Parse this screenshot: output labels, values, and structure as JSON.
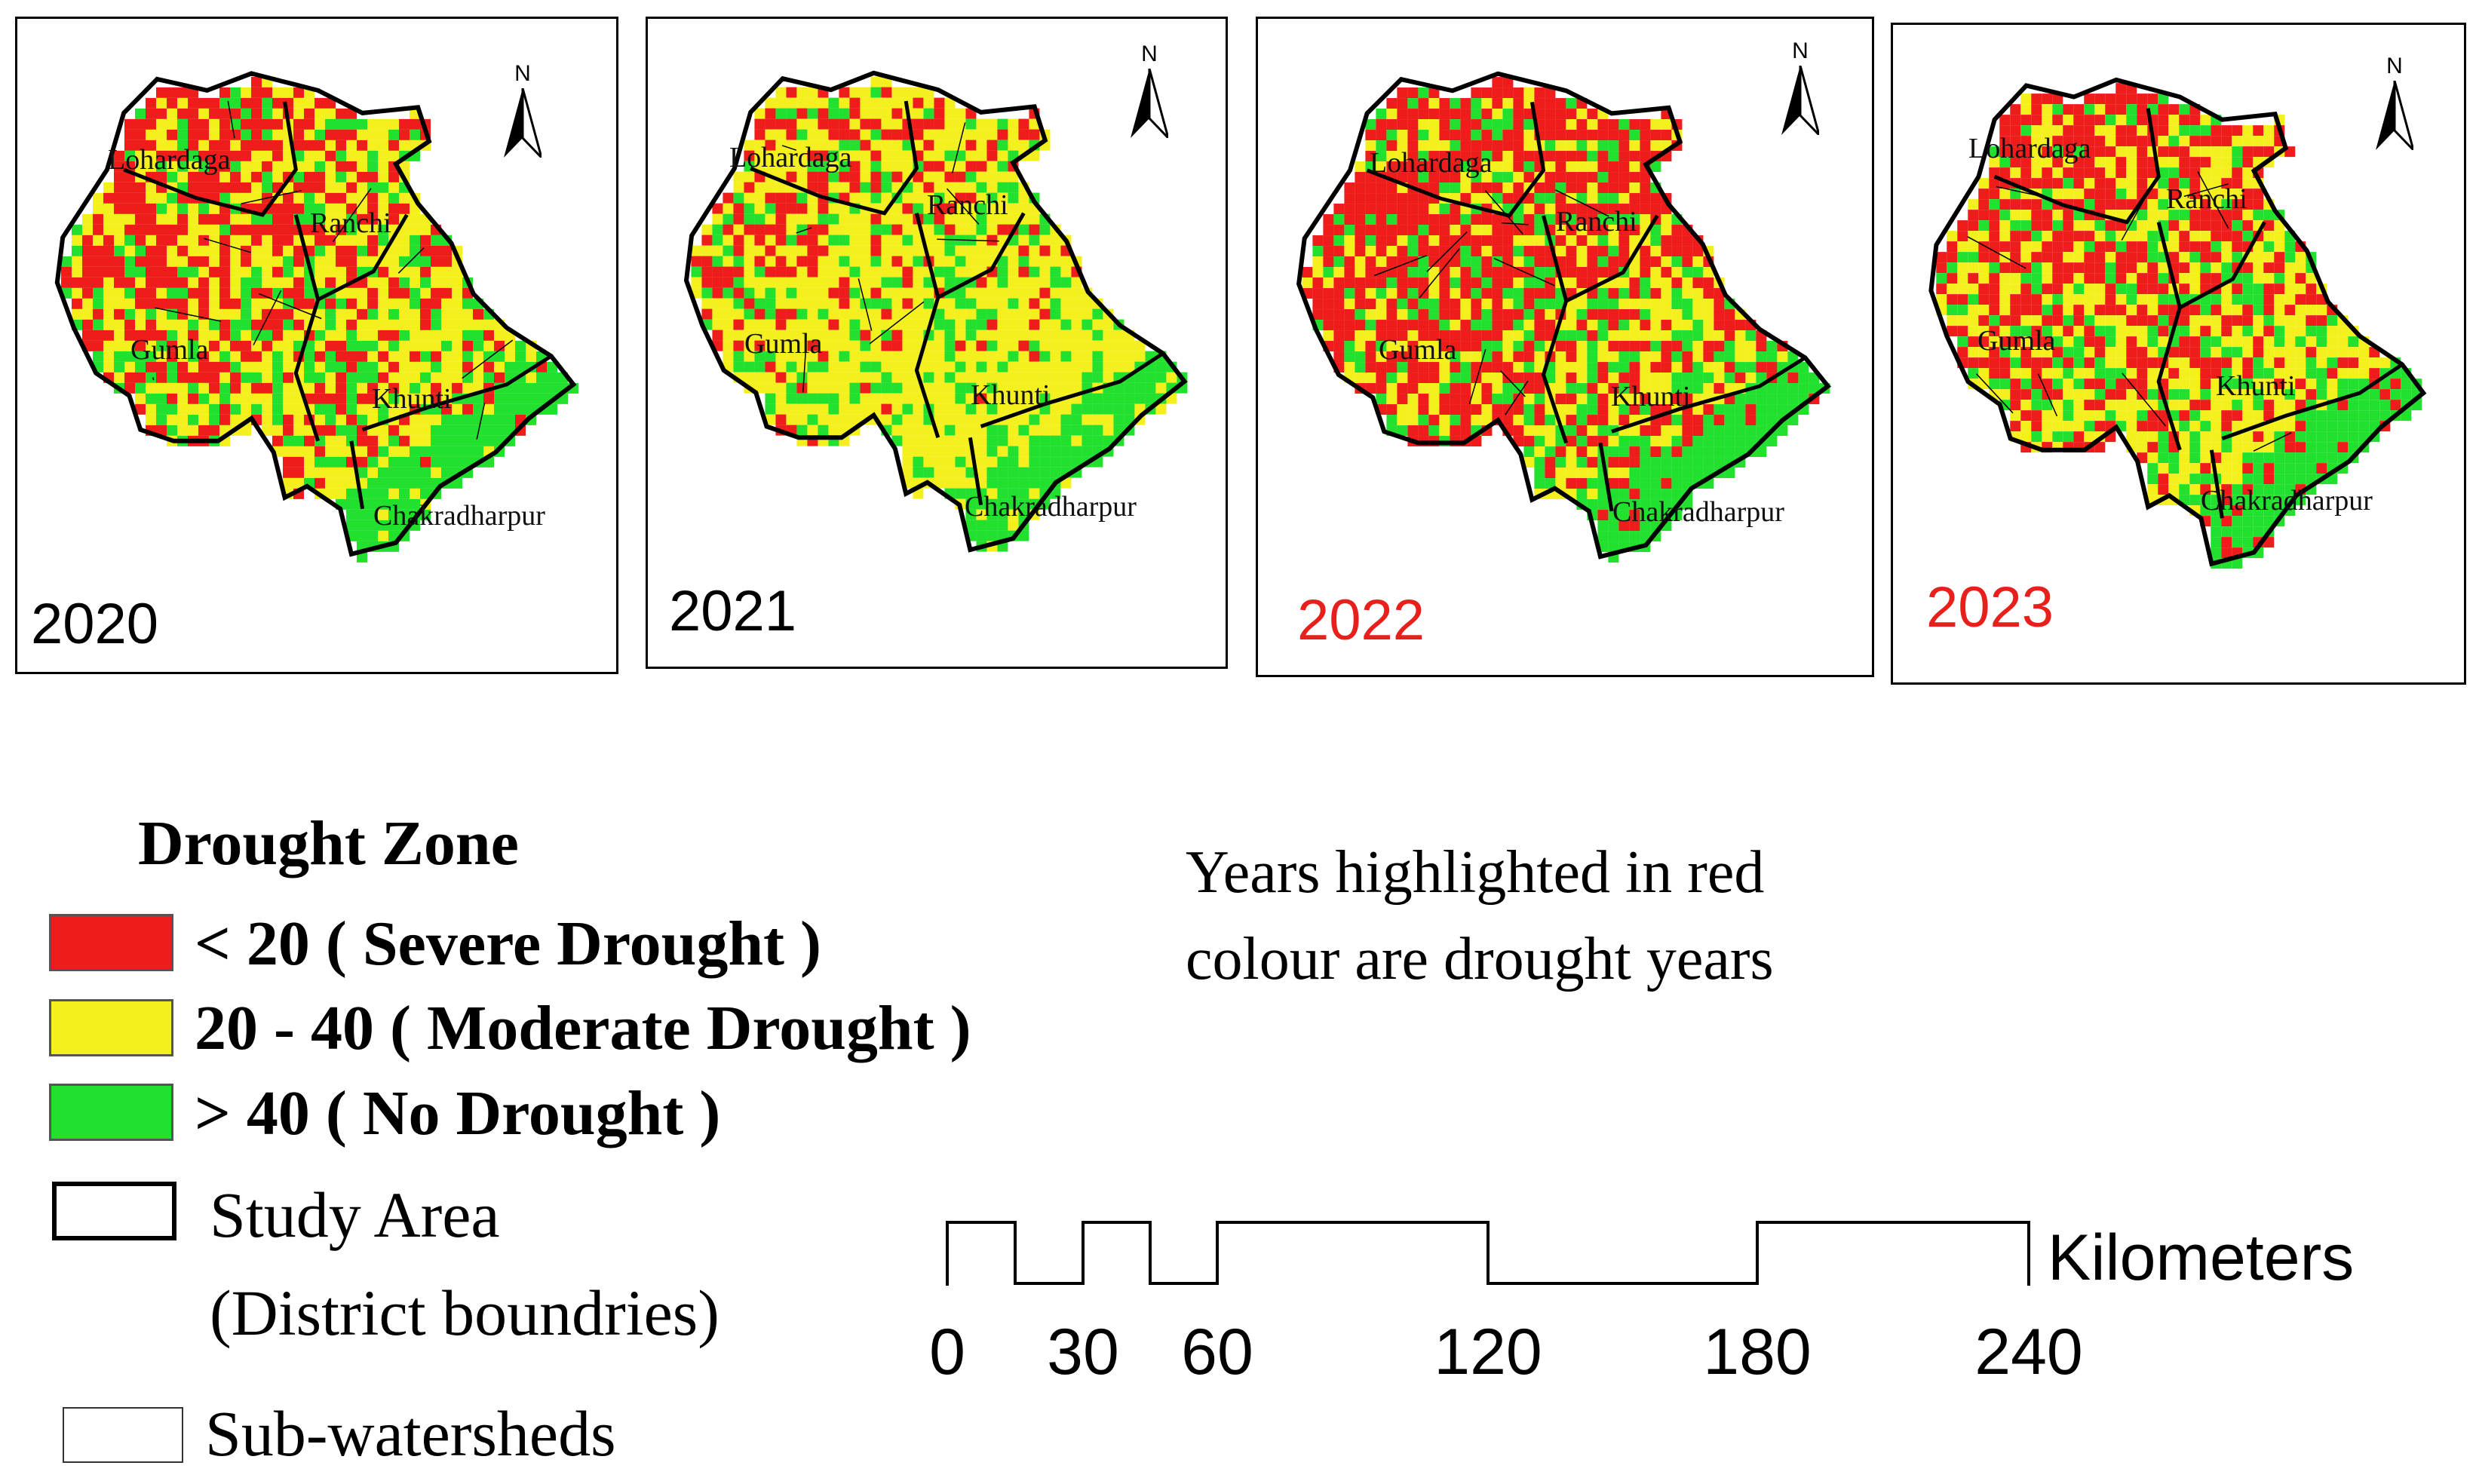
{
  "figure": {
    "panels": [
      {
        "year": "2020",
        "year_color": "#000000",
        "drought_year": false,
        "places": [
          "Lohardaga",
          "Ranchi",
          "Gumla",
          "Khunti",
          "Chakradharpur"
        ]
      },
      {
        "year": "2021",
        "year_color": "#000000",
        "drought_year": false,
        "places": [
          "Lohardaga",
          "Ranchi",
          "Gumla",
          "Khunti",
          "Chakradharpur"
        ]
      },
      {
        "year": "2022",
        "year_color": "#e8201c",
        "drought_year": true,
        "places": [
          "Lohardaga",
          "Ranchi",
          "Gumla",
          "Khunti",
          "Chakradharpur"
        ]
      },
      {
        "year": "2023",
        "year_color": "#e8201c",
        "drought_year": true,
        "places": [
          "Lohardaga",
          "Ranchi",
          "Gumla",
          "Khunti",
          "Chakradharpur"
        ]
      }
    ],
    "north_label": "N"
  },
  "legend": {
    "title": "Drought Zone",
    "classes": [
      {
        "label": "< 20 ( Severe Drought )",
        "color": "#ef1c1c"
      },
      {
        "label": "20 - 40 ( Moderate Drought )",
        "color": "#f4f01e"
      },
      {
        "label": "> 40 ( No Drought )",
        "color": "#22e02e"
      }
    ],
    "study_area": [
      "Study Area",
      "(District boundries)"
    ],
    "sub_watersheds": "Sub-watersheds"
  },
  "note": [
    "Years highlighted in red",
    "colour are drought years"
  ],
  "scale_bar": {
    "unit": "Kilometers",
    "ticks": [
      0,
      30,
      60,
      120,
      180,
      240
    ],
    "tick_labels": [
      "0",
      "30",
      "60",
      "120",
      "180",
      "240"
    ]
  }
}
